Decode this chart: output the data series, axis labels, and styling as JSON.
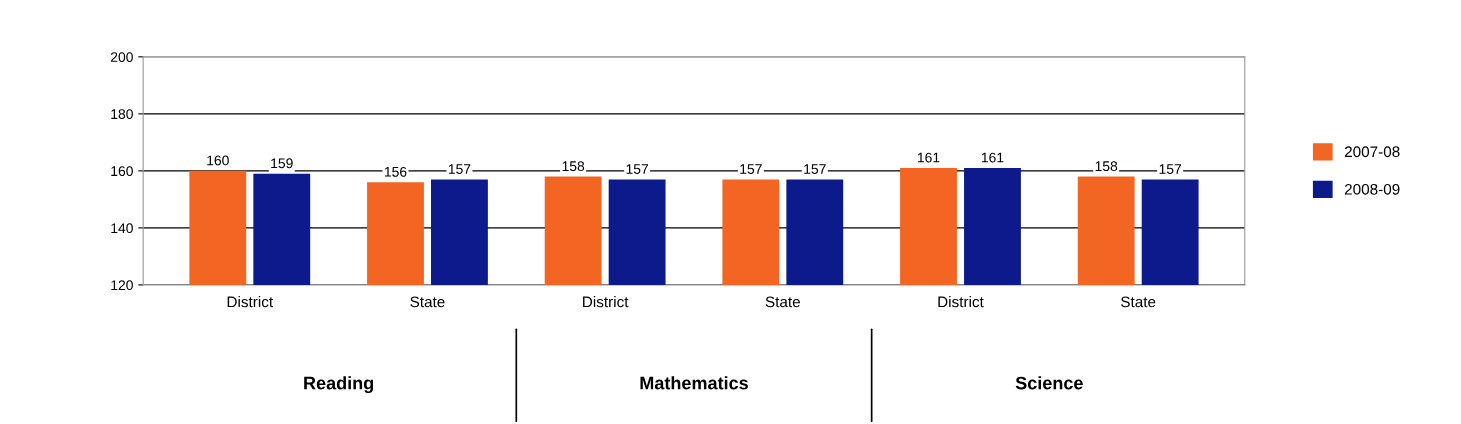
{
  "chart_data": {
    "type": "bar",
    "categories": [
      "District",
      "State",
      "District",
      "State",
      "District",
      "State"
    ],
    "series": [
      {
        "name": "2007-08",
        "color": "#f26522",
        "values": [
          160,
          156,
          158,
          157,
          161,
          158
        ]
      },
      {
        "name": "2008-09",
        "color": "#0d1a8c",
        "values": [
          159,
          157,
          157,
          157,
          161,
          157
        ]
      }
    ],
    "ylim": [
      120,
      200
    ],
    "yticks": [
      120,
      140,
      160,
      180,
      200
    ],
    "grid": "y",
    "legend": "right",
    "data_labels": true,
    "annotations": [
      "Reading",
      "Mathematics",
      "Science"
    ]
  }
}
